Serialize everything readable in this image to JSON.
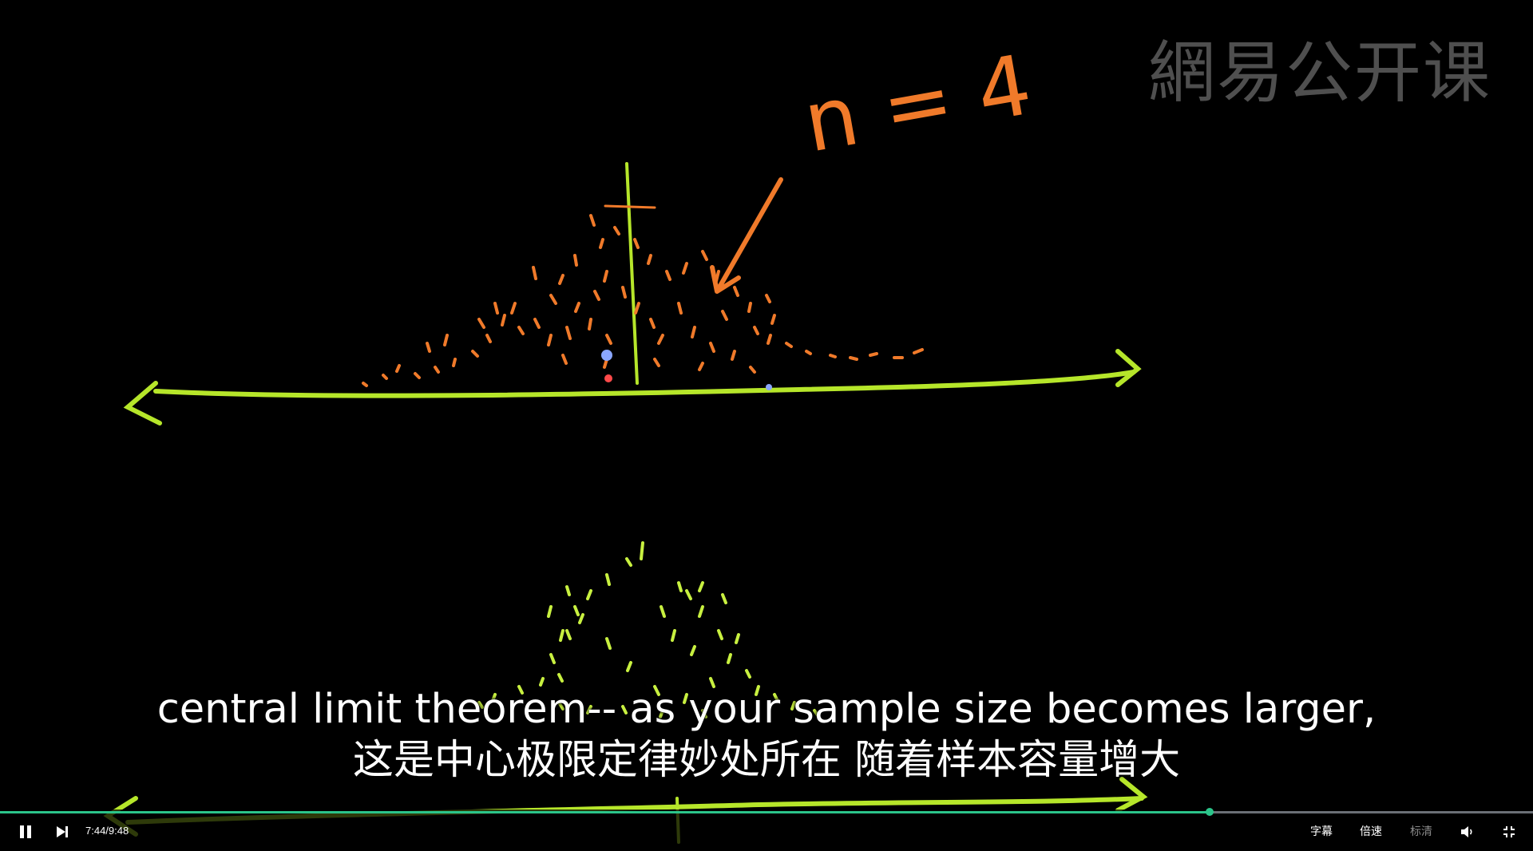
{
  "watermark": {
    "text": "網易公开课"
  },
  "board": {
    "annotation": "n = 4",
    "colors": {
      "axis": "#b6e62a",
      "orange": "#f07a2a",
      "lime": "#c8f040",
      "blue": "#8aa6ff",
      "red": "#ff4a4a"
    }
  },
  "subtitles": {
    "english": "central limit theorem-- as your sample size becomes larger,",
    "chinese": "这是中心极限定律妙处所在 随着样本容量增大"
  },
  "player": {
    "current_time": "7:44",
    "duration": "9:48",
    "time_display": "7:44/9:48",
    "progress_fraction": 0.789,
    "accent_color": "#2bc48a",
    "buttons": {
      "play_pause_icon": "pause-icon",
      "next_icon": "next-icon",
      "subtitle_label": "字幕",
      "speed_label": "倍速",
      "quality_label": "标清",
      "volume_icon": "volume-icon",
      "fullscreen_icon": "exit-fullscreen-icon"
    }
  }
}
